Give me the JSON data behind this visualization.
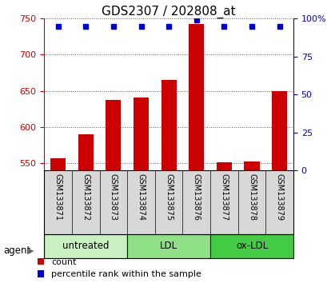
{
  "title": "GDS2307 / 202808_at",
  "samples": [
    "GSM133871",
    "GSM133872",
    "GSM133873",
    "GSM133874",
    "GSM133875",
    "GSM133876",
    "GSM133877",
    "GSM133878",
    "GSM133879"
  ],
  "counts": [
    557,
    590,
    638,
    641,
    665,
    742,
    551,
    553,
    650
  ],
  "percentiles": [
    95,
    95,
    95,
    95,
    95,
    99,
    95,
    95,
    95
  ],
  "ylim_left": [
    540,
    750
  ],
  "ylim_right": [
    0,
    100
  ],
  "yticks_left": [
    550,
    600,
    650,
    700,
    750
  ],
  "yticks_right": [
    0,
    25,
    50,
    75,
    100
  ],
  "yticklabels_right": [
    "0",
    "25",
    "50",
    "75",
    "100%"
  ],
  "bar_color": "#cc0000",
  "square_color": "#0000cc",
  "grid_color": "#000000",
  "axis_left_color": "#cc0000",
  "axis_right_color": "#0000cc",
  "background_color": "#ffffff",
  "plot_bg_color": "#ffffff",
  "sample_box_color": "#d8d8d8",
  "groups": [
    {
      "label": "untreated",
      "start": 0,
      "end": 3,
      "color": "#c8f0c0"
    },
    {
      "label": "LDL",
      "start": 3,
      "end": 6,
      "color": "#90e088"
    },
    {
      "label": "ox-LDL",
      "start": 6,
      "end": 9,
      "color": "#44cc44"
    }
  ],
  "agent_label": "agent",
  "legend_count_label": "count",
  "legend_pct_label": "percentile rank within the sample",
  "bar_width": 0.55,
  "title_fontsize": 11,
  "tick_fontsize": 8,
  "label_fontsize": 8.5,
  "legend_fontsize": 8,
  "sample_fontsize": 7
}
